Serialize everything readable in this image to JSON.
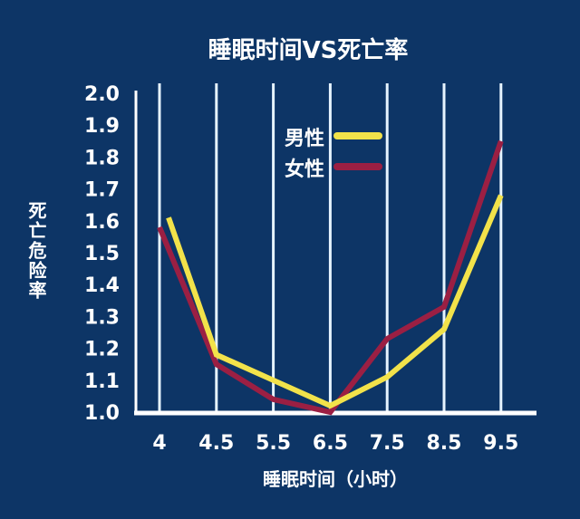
{
  "chart_data": {
    "type": "line",
    "title": "睡眠时间VS死亡率",
    "xlabel": "睡眠时间（小时）",
    "ylabel": "死亡危险率",
    "categories": [
      "4",
      "4.5",
      "5.5",
      "6.5",
      "7.5",
      "8.5",
      "9.5"
    ],
    "yticks": [
      "1.0",
      "1.1",
      "1.2",
      "1.3",
      "1.4",
      "1.5",
      "1.6",
      "1.7",
      "1.8",
      "1.9",
      "2.0"
    ],
    "ylim": [
      1.0,
      2.0
    ],
    "grid": "vertical lines at categories",
    "legend_position": "top-center",
    "series": [
      {
        "name": "男性",
        "color": "#f2e24a",
        "values": [
          1.61,
          1.18,
          1.1,
          1.02,
          1.11,
          1.26,
          1.68
        ]
      },
      {
        "name": "女性",
        "color": "#9b1f43",
        "values": [
          1.58,
          1.15,
          1.04,
          1.0,
          1.23,
          1.33,
          1.85
        ]
      }
    ],
    "colors": {
      "background": "#0d3566",
      "axis": "#ffffff",
      "grid": "#e6f4ff"
    }
  }
}
